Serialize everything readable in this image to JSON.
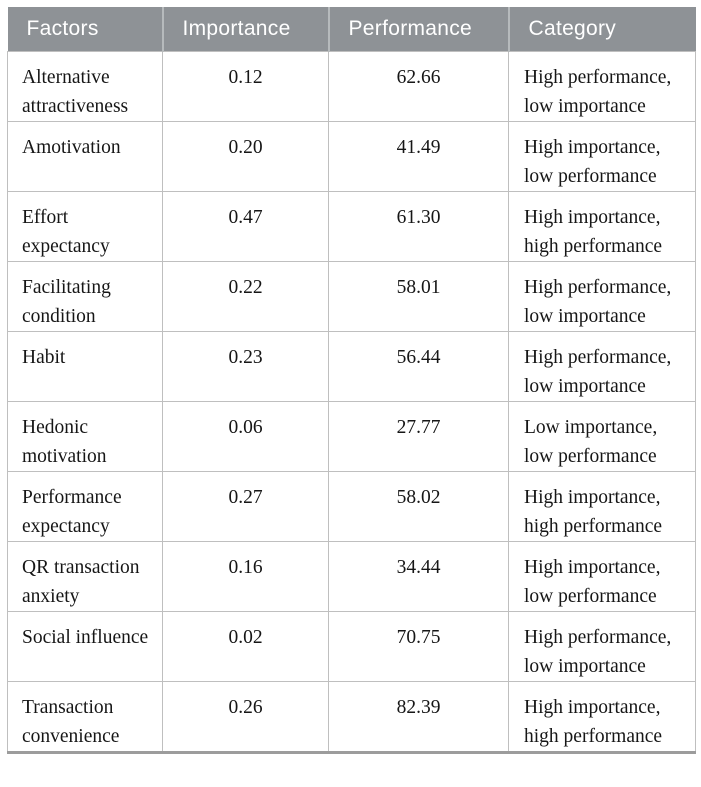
{
  "chart_data": {
    "type": "table",
    "columns": [
      {
        "key": "factor",
        "label": "Factors",
        "align": "left"
      },
      {
        "key": "importance",
        "label": "Importance",
        "align": "center"
      },
      {
        "key": "performance",
        "label": "Performance",
        "align": "center"
      },
      {
        "key": "category",
        "label": "Category",
        "align": "left"
      }
    ],
    "rows": [
      {
        "factor": "Alternative attractiveness",
        "importance": "0.12",
        "performance": "62.66",
        "category": "High performance, low importance"
      },
      {
        "factor": "Amotivation",
        "importance": "0.20",
        "performance": "41.49",
        "category": "High importance, low performance"
      },
      {
        "factor": "Effort expectancy",
        "importance": "0.47",
        "performance": "61.30",
        "category": "High importance, high performance"
      },
      {
        "factor": "Facilitating condition",
        "importance": "0.22",
        "performance": "58.01",
        "category": "High performance, low importance"
      },
      {
        "factor": "Habit",
        "importance": "0.23",
        "performance": "56.44",
        "category": "High performance, low importance"
      },
      {
        "factor": "Hedonic motivation",
        "importance": "0.06",
        "performance": "27.77",
        "category": "Low importance, low performance"
      },
      {
        "factor": "Performance expectancy",
        "importance": "0.27",
        "performance": "58.02",
        "category": "High importance, high performance"
      },
      {
        "factor": "QR transaction anxiety",
        "importance": "0.16",
        "performance": "34.44",
        "category": "High importance, low performance"
      },
      {
        "factor": "Social influence",
        "importance": "0.02",
        "performance": "70.75",
        "category": "High performance, low importance"
      },
      {
        "factor": "Transaction convenience",
        "importance": "0.26",
        "performance": "82.39",
        "category": "High importance, high performance"
      }
    ]
  },
  "colors": {
    "header_bg": "#8e9296",
    "header_text": "#ffffff",
    "cell_border": "#bfbfbf",
    "bottom_rule": "#9c9c9c",
    "body_text": "#161616",
    "background": "#ffffff"
  }
}
